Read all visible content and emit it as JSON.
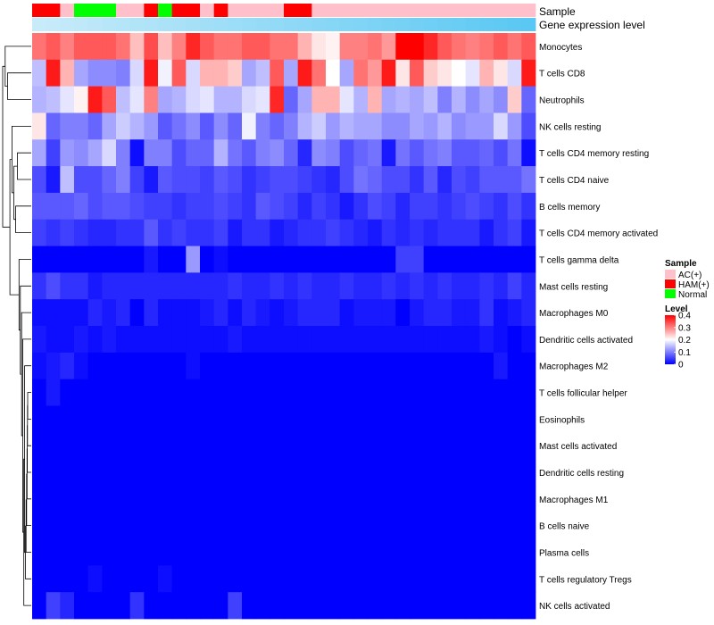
{
  "chart_data": {
    "type": "heatmap",
    "annotation_labels": {
      "sample": "Sample",
      "gene_expression": "Gene expression level"
    },
    "rows": [
      "Monocytes",
      "T cells CD8",
      "Neutrophils",
      "NK cells resting",
      "T cells CD4 memory resting",
      "T cells CD4 naive",
      "B cells memory",
      "T cells CD4 memory activated",
      "T cells gamma delta",
      "Mast cells resting",
      "Macrophages M0",
      "Dendritic cells activated",
      "Macrophages M2",
      "T cells follicular helper",
      "Eosinophils",
      "Mast cells activated",
      "Dendritic cells resting",
      "Macrophages M1",
      "B cells naive",
      "Plasma cells",
      "T cells regulatory  Tregs",
      "NK cells activated"
    ],
    "sample_groups": [
      "HAM(+)",
      "HAM(+)",
      "AC(+)",
      "Normal",
      "Normal",
      "Normal",
      "AC(+)",
      "AC(+)",
      "HAM(+)",
      "Normal",
      "HAM(+)",
      "HAM(+)",
      "AC(+)",
      "HAM(+)",
      "AC(+)",
      "AC(+)",
      "AC(+)",
      "AC(+)",
      "HAM(+)",
      "HAM(+)",
      "AC(+)",
      "AC(+)",
      "AC(+)",
      "AC(+)",
      "AC(+)",
      "AC(+)",
      "AC(+)",
      "AC(+)",
      "AC(+)",
      "AC(+)",
      "AC(+)",
      "AC(+)",
      "AC(+)",
      "AC(+)",
      "AC(+)",
      "AC(+)"
    ],
    "values": [
      [
        0.31,
        0.33,
        0.3,
        0.33,
        0.33,
        0.33,
        0.31,
        0.25,
        0.34,
        0.25,
        0.3,
        0.37,
        0.33,
        0.31,
        0.31,
        0.33,
        0.33,
        0.31,
        0.31,
        0.26,
        0.22,
        0.21,
        0.3,
        0.3,
        0.31,
        0.28,
        0.4,
        0.4,
        0.37,
        0.33,
        0.31,
        0.3,
        0.31,
        0.33,
        0.31,
        0.33
      ],
      [
        0.15,
        0.38,
        0.26,
        0.13,
        0.11,
        0.11,
        0.1,
        0.17,
        0.38,
        0.19,
        0.33,
        0.17,
        0.26,
        0.26,
        0.24,
        0.13,
        0.15,
        0.33,
        0.13,
        0.38,
        0.31,
        0.2,
        0.13,
        0.31,
        0.28,
        0.38,
        0.22,
        0.33,
        0.24,
        0.22,
        0.2,
        0.18,
        0.26,
        0.22,
        0.17,
        0.38
      ],
      [
        0.14,
        0.15,
        0.18,
        0.21,
        0.38,
        0.33,
        0.15,
        0.18,
        0.3,
        0.13,
        0.14,
        0.17,
        0.18,
        0.14,
        0.14,
        0.17,
        0.18,
        0.37,
        0.08,
        0.13,
        0.26,
        0.26,
        0.18,
        0.14,
        0.26,
        0.13,
        0.14,
        0.13,
        0.15,
        0.1,
        0.14,
        0.11,
        0.13,
        0.11,
        0.24,
        0.08
      ],
      [
        0.22,
        0.08,
        0.1,
        0.1,
        0.08,
        0.13,
        0.16,
        0.14,
        0.12,
        0.07,
        0.09,
        0.11,
        0.07,
        0.11,
        0.08,
        0.19,
        0.1,
        0.08,
        0.1,
        0.14,
        0.16,
        0.12,
        0.14,
        0.13,
        0.13,
        0.11,
        0.11,
        0.13,
        0.12,
        0.14,
        0.11,
        0.12,
        0.12,
        0.17,
        0.12,
        0.06
      ],
      [
        0.13,
        0.05,
        0.12,
        0.11,
        0.13,
        0.17,
        0.1,
        0.01,
        0.1,
        0.1,
        0.06,
        0.08,
        0.08,
        0.14,
        0.09,
        0.07,
        0.1,
        0.11,
        0.08,
        0.03,
        0.11,
        0.1,
        0.06,
        0.08,
        0.09,
        0.02,
        0.09,
        0.07,
        0.09,
        0.1,
        0.07,
        0.07,
        0.08,
        0.06,
        0.09,
        0.01
      ],
      [
        0.06,
        0.02,
        0.15,
        0.06,
        0.06,
        0.08,
        0.1,
        0.05,
        0.02,
        0.07,
        0.06,
        0.06,
        0.05,
        0.07,
        0.06,
        0.04,
        0.05,
        0.06,
        0.06,
        0.05,
        0.04,
        0.03,
        0.06,
        0.09,
        0.08,
        0.06,
        0.06,
        0.04,
        0.07,
        0.03,
        0.06,
        0.05,
        0.07,
        0.07,
        0.07,
        0.09
      ],
      [
        0.07,
        0.07,
        0.07,
        0.08,
        0.06,
        0.07,
        0.07,
        0.06,
        0.05,
        0.05,
        0.04,
        0.05,
        0.05,
        0.06,
        0.05,
        0.04,
        0.07,
        0.06,
        0.05,
        0.03,
        0.05,
        0.04,
        0.02,
        0.04,
        0.06,
        0.05,
        0.03,
        0.05,
        0.05,
        0.04,
        0.05,
        0.06,
        0.05,
        0.04,
        0.06,
        0.04
      ],
      [
        0.05,
        0.04,
        0.05,
        0.04,
        0.03,
        0.03,
        0.04,
        0.04,
        0.07,
        0.04,
        0.05,
        0.04,
        0.04,
        0.05,
        0.02,
        0.04,
        0.04,
        0.02,
        0.03,
        0.04,
        0.04,
        0.05,
        0.04,
        0.03,
        0.02,
        0.04,
        0.03,
        0.04,
        0.03,
        0.04,
        0.04,
        0.04,
        0.02,
        0.04,
        0.05,
        0.02
      ],
      [
        0.0,
        0.0,
        0.0,
        0.0,
        0.0,
        0.0,
        0.0,
        0.0,
        0.02,
        0.0,
        0.0,
        0.12,
        0.0,
        0.01,
        0.0,
        0.0,
        0.0,
        0.0,
        0.0,
        0.0,
        0.0,
        0.0,
        0.0,
        0.0,
        0.0,
        0.0,
        0.05,
        0.05,
        0.0,
        0.0,
        0.0,
        0.0,
        0.0,
        0.0,
        0.0,
        0.0
      ],
      [
        0.04,
        0.06,
        0.04,
        0.04,
        0.02,
        0.03,
        0.03,
        0.03,
        0.03,
        0.03,
        0.03,
        0.03,
        0.03,
        0.03,
        0.04,
        0.03,
        0.03,
        0.04,
        0.03,
        0.04,
        0.03,
        0.03,
        0.04,
        0.03,
        0.03,
        0.04,
        0.03,
        0.04,
        0.03,
        0.04,
        0.03,
        0.03,
        0.04,
        0.03,
        0.05,
        0.03
      ],
      [
        0.01,
        0.01,
        0.01,
        0.01,
        0.03,
        0.02,
        0.03,
        0.0,
        0.03,
        0.01,
        0.01,
        0.01,
        0.02,
        0.03,
        0.01,
        0.03,
        0.02,
        0.01,
        0.02,
        0.03,
        0.03,
        0.03,
        0.01,
        0.02,
        0.02,
        0.02,
        0.0,
        0.02,
        0.03,
        0.03,
        0.02,
        0.02,
        0.04,
        0.01,
        0.02,
        0.03
      ],
      [
        0.02,
        0.01,
        0.01,
        0.02,
        0.01,
        0.02,
        0.01,
        0.01,
        0.01,
        0.01,
        0.01,
        0.01,
        0.01,
        0.01,
        0.02,
        0.01,
        0.01,
        0.01,
        0.01,
        0.01,
        0.01,
        0.01,
        0.01,
        0.01,
        0.01,
        0.01,
        0.01,
        0.01,
        0.01,
        0.01,
        0.01,
        0.01,
        0.02,
        0.01,
        0.0,
        0.01
      ],
      [
        0.01,
        0.02,
        0.03,
        0.01,
        0.0,
        0.0,
        0.0,
        0.0,
        0.0,
        0.0,
        0.0,
        0.01,
        0.0,
        0.0,
        0.0,
        0.0,
        0.0,
        0.0,
        0.0,
        0.0,
        0.0,
        0.0,
        0.0,
        0.0,
        0.0,
        0.0,
        0.0,
        0.0,
        0.0,
        0.0,
        0.0,
        0.0,
        0.0,
        0.02,
        0.0,
        0.0
      ],
      [
        0.0,
        0.02,
        0.0,
        0.0,
        0.0,
        0.0,
        0.0,
        0.0,
        0.0,
        0.0,
        0.0,
        0.0,
        0.0,
        0.0,
        0.0,
        0.0,
        0.0,
        0.0,
        0.0,
        0.0,
        0.0,
        0.0,
        0.0,
        0.0,
        0.0,
        0.0,
        0.0,
        0.0,
        0.0,
        0.0,
        0.0,
        0.0,
        0.0,
        0.0,
        0.0,
        0.0
      ],
      [
        0.0,
        0.0,
        0.0,
        0.0,
        0.0,
        0.0,
        0.0,
        0.0,
        0.0,
        0.0,
        0.0,
        0.0,
        0.0,
        0.0,
        0.0,
        0.0,
        0.0,
        0.0,
        0.0,
        0.0,
        0.0,
        0.0,
        0.0,
        0.0,
        0.0,
        0.0,
        0.0,
        0.0,
        0.0,
        0.0,
        0.0,
        0.0,
        0.0,
        0.0,
        0.0,
        0.0
      ],
      [
        0.0,
        0.0,
        0.0,
        0.0,
        0.0,
        0.0,
        0.0,
        0.0,
        0.0,
        0.0,
        0.0,
        0.0,
        0.0,
        0.0,
        0.0,
        0.0,
        0.0,
        0.0,
        0.0,
        0.0,
        0.0,
        0.0,
        0.0,
        0.0,
        0.0,
        0.0,
        0.0,
        0.0,
        0.0,
        0.0,
        0.0,
        0.0,
        0.0,
        0.0,
        0.0,
        0.0
      ],
      [
        0.0,
        0.0,
        0.0,
        0.0,
        0.0,
        0.0,
        0.0,
        0.0,
        0.0,
        0.0,
        0.0,
        0.0,
        0.0,
        0.0,
        0.0,
        0.0,
        0.0,
        0.0,
        0.0,
        0.0,
        0.0,
        0.0,
        0.0,
        0.0,
        0.0,
        0.0,
        0.0,
        0.0,
        0.0,
        0.0,
        0.0,
        0.0,
        0.0,
        0.0,
        0.0,
        0.0
      ],
      [
        0.0,
        0.0,
        0.0,
        0.0,
        0.0,
        0.0,
        0.0,
        0.0,
        0.0,
        0.0,
        0.0,
        0.0,
        0.0,
        0.0,
        0.0,
        0.0,
        0.0,
        0.0,
        0.0,
        0.0,
        0.0,
        0.0,
        0.0,
        0.0,
        0.0,
        0.0,
        0.0,
        0.0,
        0.0,
        0.0,
        0.0,
        0.0,
        0.0,
        0.0,
        0.0,
        0.0
      ],
      [
        0.0,
        0.0,
        0.0,
        0.0,
        0.0,
        0.0,
        0.0,
        0.0,
        0.0,
        0.0,
        0.0,
        0.0,
        0.0,
        0.0,
        0.0,
        0.0,
        0.0,
        0.0,
        0.0,
        0.0,
        0.0,
        0.0,
        0.0,
        0.0,
        0.0,
        0.0,
        0.0,
        0.0,
        0.0,
        0.0,
        0.0,
        0.0,
        0.0,
        0.0,
        0.0,
        0.0
      ],
      [
        0.0,
        0.0,
        0.0,
        0.0,
        0.0,
        0.0,
        0.0,
        0.0,
        0.0,
        0.0,
        0.0,
        0.0,
        0.0,
        0.0,
        0.0,
        0.0,
        0.0,
        0.0,
        0.0,
        0.0,
        0.0,
        0.0,
        0.0,
        0.0,
        0.0,
        0.0,
        0.0,
        0.0,
        0.0,
        0.0,
        0.0,
        0.0,
        0.0,
        0.0,
        0.0,
        0.0
      ],
      [
        0.0,
        0.0,
        0.0,
        0.0,
        0.01,
        0.0,
        0.0,
        0.0,
        0.0,
        0.01,
        0.0,
        0.0,
        0.0,
        0.0,
        0.0,
        0.0,
        0.0,
        0.0,
        0.0,
        0.0,
        0.0,
        0.0,
        0.0,
        0.0,
        0.0,
        0.0,
        0.0,
        0.0,
        0.0,
        0.0,
        0.0,
        0.0,
        0.0,
        0.0,
        0.0,
        0.0
      ],
      [
        0.0,
        0.05,
        0.03,
        0.0,
        0.0,
        0.0,
        0.0,
        0.04,
        0.0,
        0.0,
        0.0,
        0.0,
        0.0,
        0.0,
        0.05,
        0.0,
        0.0,
        0.0,
        0.0,
        0.0,
        0.0,
        0.0,
        0.0,
        0.0,
        0.0,
        0.0,
        0.0,
        0.0,
        0.0,
        0.0,
        0.0,
        0.0,
        0.0,
        0.0,
        0.0,
        0.0
      ]
    ],
    "dendrogram_merges": [
      [
        -14,
        -15
      ],
      [
        1,
        -16
      ],
      [
        2,
        -17
      ],
      [
        3,
        -18
      ],
      [
        4,
        -19
      ],
      [
        5,
        -20
      ],
      [
        6,
        -21
      ],
      [
        7,
        -13
      ],
      [
        8,
        -22
      ],
      [
        9,
        -12
      ],
      [
        10,
        -11
      ],
      [
        11,
        -10
      ],
      [
        12,
        -9
      ],
      [
        -5,
        -6
      ],
      [
        -7,
        -8
      ],
      [
        14,
        15
      ],
      [
        -4,
        16
      ],
      [
        13,
        17
      ],
      [
        -2,
        -3
      ],
      [
        -1,
        19
      ],
      [
        18,
        20
      ]
    ],
    "legend": {
      "sample_title": "Sample",
      "sample_items": [
        {
          "label": "AC(+)",
          "color": "#ffc0cb"
        },
        {
          "label": "HAM(+)",
          "color": "#ff0000"
        },
        {
          "label": "Normal",
          "color": "#00ff00"
        }
      ],
      "level_title": "Level",
      "level_ticks": [
        "0.4",
        "0.3",
        "0.2",
        "0.1",
        "0"
      ],
      "level_range": [
        0,
        0.4
      ]
    },
    "colors": {
      "low": "#0000ff",
      "mid": "#ffffff",
      "high": "#ff0000",
      "gene_expression_bar": "#87ceeb"
    }
  }
}
